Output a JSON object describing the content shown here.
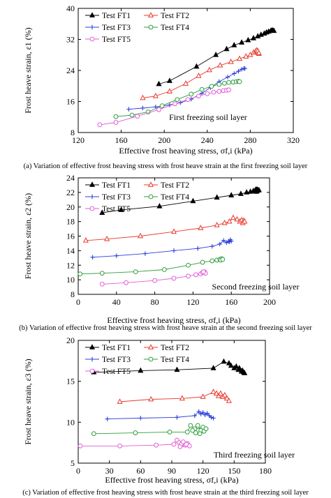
{
  "chart_data": [
    {
      "type": "line",
      "caption": "(a) Variation of effective frost heaving stress with frost heave strain at the first freezing soil layer",
      "xlabel": "Effective frost heaving stress, σf,i (kPa)",
      "ylabel": "Frost heave strain, ε1 (%)",
      "xlim": [
        120,
        320
      ],
      "ylim": [
        8,
        40
      ],
      "xticks": [
        120,
        160,
        200,
        240,
        280,
        320
      ],
      "yticks": [
        8,
        16,
        24,
        32,
        40
      ],
      "annotation": "First freezing soil layer",
      "legend_placement": "top-left",
      "series": [
        {
          "name": "Test FT1",
          "color": "#000000",
          "marker": "triangle-filled",
          "points": [
            [
              195,
              20.5
            ],
            [
              205,
              21.3
            ],
            [
              230,
              25.0
            ],
            [
              248,
              28.0
            ],
            [
              258,
              29.5
            ],
            [
              265,
              30.5
            ],
            [
              272,
              31.2
            ],
            [
              278,
              31.8
            ],
            [
              283,
              32.3
            ],
            [
              287,
              32.8
            ],
            [
              290,
              33.2
            ],
            [
              293,
              33.5
            ],
            [
              295,
              33.8
            ],
            [
              297,
              34.0
            ],
            [
              299,
              34.2
            ],
            [
              300,
              34.3
            ],
            [
              301,
              34.3
            ],
            [
              302,
              34.2
            ]
          ]
        },
        {
          "name": "Test FT2",
          "color": "#e8382b",
          "marker": "triangle-open",
          "points": [
            [
              180,
              16.9
            ],
            [
              192,
              17.4
            ],
            [
              205,
              18.6
            ],
            [
              220,
              20.6
            ],
            [
              232,
              22.6
            ],
            [
              242,
              24.1
            ],
            [
              252,
              25.3
            ],
            [
              262,
              26.2
            ],
            [
              270,
              27.0
            ],
            [
              276,
              27.6
            ],
            [
              280,
              28.0
            ],
            [
              283,
              28.6
            ],
            [
              285,
              28.9
            ],
            [
              286,
              29.2
            ],
            [
              287,
              28.7
            ],
            [
              288,
              28.3
            ],
            [
              287,
              29.0
            ],
            [
              288,
              28.5
            ]
          ]
        },
        {
          "name": "Test FT3",
          "color": "#2b3fd9",
          "marker": "plus",
          "points": [
            [
              167,
              14.0
            ],
            [
              180,
              14.3
            ],
            [
              192,
              14.6
            ],
            [
              205,
              15.1
            ],
            [
              215,
              15.7
            ],
            [
              225,
              16.6
            ],
            [
              235,
              18.1
            ],
            [
              243,
              19.6
            ],
            [
              251,
              21.1
            ],
            [
              259,
              22.3
            ],
            [
              265,
              23.2
            ],
            [
              269,
              23.8
            ],
            [
              272,
              24.3
            ],
            [
              274,
              24.5
            ],
            [
              275,
              24.5
            ]
          ]
        },
        {
          "name": "Test FT4",
          "color": "#2e9e3c",
          "marker": "circle-open",
          "points": [
            [
              155,
              12.1
            ],
            [
              170,
              12.5
            ],
            [
              185,
              13.3
            ],
            [
              198,
              14.9
            ],
            [
              212,
              16.5
            ],
            [
              225,
              17.9
            ],
            [
              235,
              19.1
            ],
            [
              244,
              19.9
            ],
            [
              251,
              20.4
            ],
            [
              256,
              20.7
            ],
            [
              260,
              20.9
            ],
            [
              264,
              21.0
            ],
            [
              267,
              21.1
            ],
            [
              269,
              21.2
            ],
            [
              270,
              21.1
            ]
          ]
        },
        {
          "name": "Test FT5",
          "color": "#e25bd6",
          "marker": "circle-open",
          "points": [
            [
              140,
              10.0
            ],
            [
              155,
              10.6
            ],
            [
              175,
              12.2
            ],
            [
              195,
              13.9
            ],
            [
              210,
              15.4
            ],
            [
              222,
              16.5
            ],
            [
              232,
              17.4
            ],
            [
              240,
              18.0
            ],
            [
              246,
              18.4
            ],
            [
              251,
              18.6
            ],
            [
              255,
              18.8
            ],
            [
              258,
              18.9
            ],
            [
              260,
              19.0
            ]
          ]
        }
      ]
    },
    {
      "type": "line",
      "caption": "(b) Variation of effective frost heaving stress with frost heave strain at the second freezing soil layer",
      "xlabel": "Effective frost heaving stress, σf,i (kPa)",
      "ylabel": "Frost heave strain, ε2 (%)",
      "xlim": [
        0,
        200
      ],
      "ylim": [
        8,
        24
      ],
      "xticks": [
        0,
        40,
        80,
        120,
        160,
        200
      ],
      "yticks": [
        8,
        10,
        12,
        14,
        16,
        18,
        20,
        22,
        24
      ],
      "annotation": "Second freezing soil layer",
      "legend_placement": "top-left",
      "series": [
        {
          "name": "Test FT1",
          "color": "#000000",
          "marker": "triangle-filled",
          "points": [
            [
              25,
              19.2
            ],
            [
              45,
              19.6
            ],
            [
              85,
              20.1
            ],
            [
              120,
              20.8
            ],
            [
              145,
              21.3
            ],
            [
              160,
              21.6
            ],
            [
              170,
              21.8
            ],
            [
              176,
              22.0
            ],
            [
              180,
              22.1
            ],
            [
              183,
              22.2
            ],
            [
              185,
              22.3
            ],
            [
              186,
              22.4
            ],
            [
              187,
              22.2
            ],
            [
              188,
              22.3
            ],
            [
              186,
              22.1
            ],
            [
              189,
              22.3
            ],
            [
              187,
              22.4
            ]
          ]
        },
        {
          "name": "Test FT2",
          "color": "#e8382b",
          "marker": "triangle-open",
          "points": [
            [
              8,
              15.4
            ],
            [
              30,
              15.6
            ],
            [
              65,
              16.0
            ],
            [
              100,
              16.6
            ],
            [
              128,
              17.1
            ],
            [
              145,
              17.5
            ],
            [
              153,
              17.8
            ],
            [
              158,
              18.0
            ],
            [
              162,
              18.5
            ],
            [
              166,
              18.3
            ],
            [
              169,
              18.0
            ],
            [
              171,
              18.2
            ],
            [
              173,
              18.1
            ],
            [
              172,
              17.8
            ],
            [
              174,
              18.0
            ]
          ]
        },
        {
          "name": "Test FT3",
          "color": "#2b3fd9",
          "marker": "plus",
          "points": [
            [
              15,
              13.1
            ],
            [
              40,
              13.3
            ],
            [
              70,
              13.6
            ],
            [
              100,
              14.0
            ],
            [
              125,
              14.3
            ],
            [
              140,
              14.6
            ],
            [
              148,
              14.9
            ],
            [
              152,
              15.4
            ],
            [
              155,
              15.1
            ],
            [
              157,
              15.3
            ],
            [
              159,
              15.5
            ],
            [
              158,
              15.2
            ],
            [
              160,
              15.3
            ]
          ]
        },
        {
          "name": "Test FT4",
          "color": "#2e9e3c",
          "marker": "circle-open",
          "points": [
            [
              2,
              10.8
            ],
            [
              25,
              10.9
            ],
            [
              60,
              11.1
            ],
            [
              90,
              11.4
            ],
            [
              115,
              12.0
            ],
            [
              130,
              12.4
            ],
            [
              140,
              12.6
            ],
            [
              145,
              12.7
            ],
            [
              148,
              12.8
            ],
            [
              150,
              12.9
            ],
            [
              149,
              12.7
            ],
            [
              151,
              12.8
            ]
          ]
        },
        {
          "name": "Test FT5",
          "color": "#e25bd6",
          "marker": "circle-open",
          "points": [
            [
              25,
              9.4
            ],
            [
              50,
              9.6
            ],
            [
              80,
              9.9
            ],
            [
              100,
              10.2
            ],
            [
              115,
              10.5
            ],
            [
              123,
              10.7
            ],
            [
              128,
              10.8
            ],
            [
              130,
              11.0
            ],
            [
              132,
              11.1
            ],
            [
              133,
              10.9
            ],
            [
              131,
              11.1
            ]
          ]
        }
      ]
    },
    {
      "type": "line",
      "caption": "(c) Variation of effective frost heaving stress with frost heave strain at the third freezing soil layer",
      "xlabel": "Effective frost heaving stress, σf,i (kPa)",
      "ylabel": "Frost heave strain, ε3 (%)",
      "xlim": [
        0,
        180
      ],
      "ylim": [
        5,
        20
      ],
      "xticks": [
        0,
        30,
        60,
        90,
        120,
        150,
        180
      ],
      "yticks": [
        5,
        10,
        15,
        20
      ],
      "annotation": "Third freezing soil layer",
      "legend_placement": "top-left",
      "series": [
        {
          "name": "Test FT1",
          "color": "#000000",
          "marker": "triangle-filled",
          "points": [
            [
              15,
              16.1
            ],
            [
              60,
              16.3
            ],
            [
              95,
              16.4
            ],
            [
              130,
              16.6
            ],
            [
              140,
              17.4
            ],
            [
              145,
              17.2
            ],
            [
              147,
              16.9
            ],
            [
              150,
              16.6
            ],
            [
              152,
              16.8
            ],
            [
              154,
              16.4
            ],
            [
              155,
              16.6
            ],
            [
              157,
              16.2
            ],
            [
              158,
              16.3
            ],
            [
              159,
              16.1
            ],
            [
              160,
              16.0
            ]
          ]
        },
        {
          "name": "Test FT2",
          "color": "#e8382b",
          "marker": "triangle-open",
          "points": [
            [
              40,
              12.5
            ],
            [
              70,
              12.8
            ],
            [
              100,
              12.9
            ],
            [
              120,
              13.1
            ],
            [
              130,
              13.7
            ],
            [
              133,
              13.5
            ],
            [
              135,
              13.2
            ],
            [
              137,
              13.5
            ],
            [
              139,
              13.1
            ],
            [
              141,
              13.3
            ],
            [
              143,
              12.9
            ],
            [
              145,
              12.6
            ]
          ]
        },
        {
          "name": "Test FT3",
          "color": "#2b3fd9",
          "marker": "plus",
          "points": [
            [
              28,
              10.4
            ],
            [
              60,
              10.5
            ],
            [
              95,
              10.6
            ],
            [
              112,
              10.8
            ],
            [
              116,
              11.3
            ],
            [
              118,
              11.0
            ],
            [
              120,
              11.2
            ],
            [
              122,
              10.9
            ],
            [
              124,
              11.1
            ],
            [
              126,
              10.8
            ],
            [
              128,
              10.6
            ],
            [
              130,
              10.5
            ]
          ]
        },
        {
          "name": "Test FT4",
          "color": "#2e9e3c",
          "marker": "circle-open",
          "points": [
            [
              15,
              8.6
            ],
            [
              55,
              8.7
            ],
            [
              88,
              8.8
            ],
            [
              105,
              8.8
            ],
            [
              108,
              9.6
            ],
            [
              112,
              9.2
            ],
            [
              115,
              9.6
            ],
            [
              118,
              9.0
            ],
            [
              120,
              9.4
            ],
            [
              110,
              9.0
            ],
            [
              113,
              8.7
            ],
            [
              117,
              8.6
            ],
            [
              121,
              8.9
            ],
            [
              123,
              9.2
            ]
          ]
        },
        {
          "name": "Test FT5",
          "color": "#e25bd6",
          "marker": "circle-open",
          "points": [
            [
              2,
              7.1
            ],
            [
              40,
              7.1
            ],
            [
              75,
              7.2
            ],
            [
              92,
              7.3
            ],
            [
              95,
              7.8
            ],
            [
              97,
              7.5
            ],
            [
              99,
              7.3
            ],
            [
              101,
              7.6
            ],
            [
              103,
              7.2
            ],
            [
              105,
              7.4
            ],
            [
              107,
              7.1
            ],
            [
              98,
              7.0
            ],
            [
              104,
              7.3
            ]
          ]
        }
      ]
    }
  ]
}
